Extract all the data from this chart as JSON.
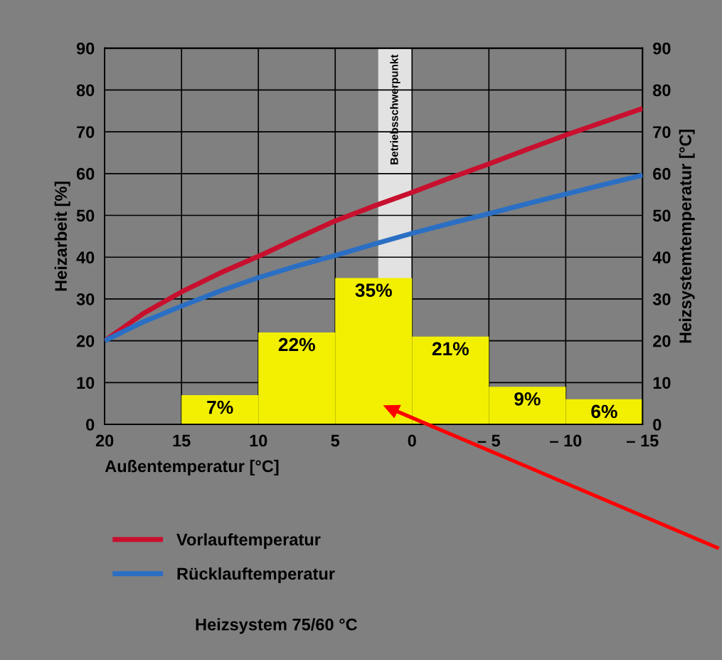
{
  "chart_data": {
    "type": "histogram",
    "xlabel": "Außentemperatur [°C]",
    "ylabel": "Heizarbeit [%]",
    "y2label": "Heizsystemtemperatur [°C]",
    "bins": [
      15,
      10,
      5,
      0,
      -5,
      -10,
      -15
    ],
    "values": [
      7,
      22,
      35,
      21,
      9,
      6
    ],
    "color": "#f2f000",
    "value_labels": [
      "7%",
      "22%",
      "35%",
      "21%",
      "9%",
      "6%"
    ],
    "series": [
      {
        "name": "Vorlauftemperatur",
        "type": "line",
        "axis": "y2",
        "color": "#c8102e",
        "x": [
          20,
          17.5,
          15,
          12.5,
          10,
          7.5,
          5,
          2.5,
          0,
          -2.5,
          -5,
          -7.5,
          -10,
          -12.5,
          -15
        ],
        "values": [
          20,
          26.5,
          31.7,
          36.2,
          40.2,
          44.5,
          48.7,
          52.2,
          55.5,
          59,
          62.3,
          65.8,
          69.2,
          72.4,
          75.6
        ]
      },
      {
        "name": "Rücklauftemperatur",
        "type": "line",
        "axis": "y2",
        "color": "#2a6fc4",
        "x": [
          20,
          17.5,
          15,
          12.5,
          10,
          7.5,
          5,
          2.5,
          0,
          -2.5,
          -5,
          -7.5,
          -10,
          -12.5,
          -15
        ],
        "values": [
          20,
          24.5,
          28.3,
          31.9,
          35.1,
          37.9,
          40.4,
          43.1,
          45.7,
          48.1,
          50.4,
          52.8,
          55.1,
          57.4,
          59.6
        ]
      }
    ],
    "bands": [
      {
        "axis": "x",
        "from": 2.2,
        "to": 0,
        "label": "Betriebsschwerpunkt",
        "color": "#e2e2e2"
      }
    ],
    "xlim": [
      20,
      -15
    ],
    "xticks": [
      20,
      15,
      10,
      5,
      0,
      {
        "value": -5,
        "label": "– 5"
      },
      {
        "value": -10,
        "label": "– 10"
      },
      {
        "value": -15,
        "label": "– 15"
      }
    ],
    "ylim": [
      0,
      90
    ],
    "yticks": [
      0,
      10,
      20,
      30,
      40,
      50,
      60,
      70,
      80,
      90
    ],
    "y2lim": [
      0,
      90
    ],
    "y2ticks": [
      0,
      10,
      20,
      30,
      40,
      50,
      60,
      70,
      80,
      90
    ],
    "grid": true,
    "legend": "bottom",
    "annotations": [
      "Heizsystem 75/60 °C"
    ]
  }
}
